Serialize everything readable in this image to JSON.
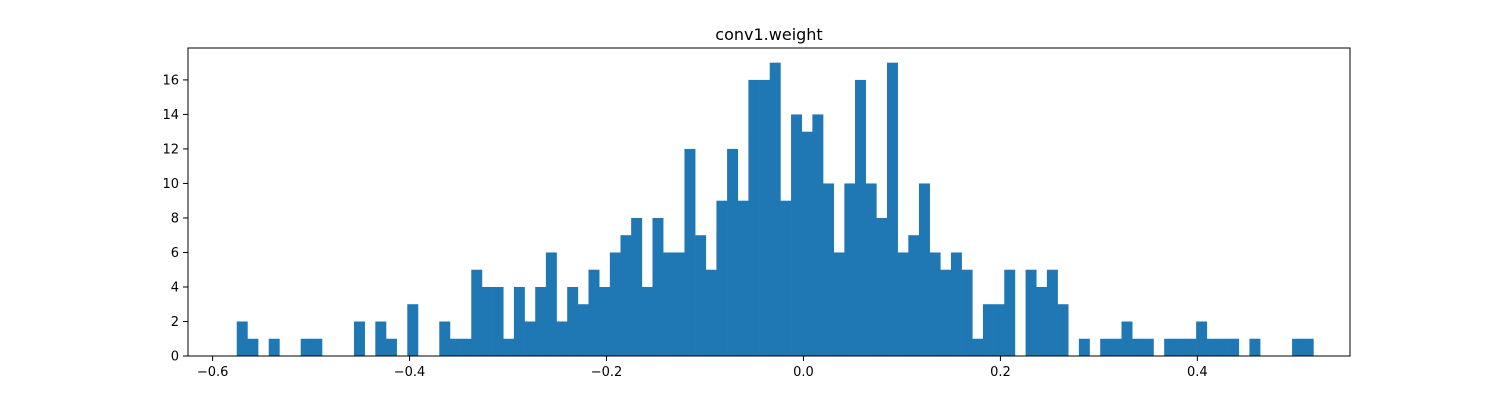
{
  "chart_data": {
    "type": "bar",
    "title": "conv1.weight",
    "xlabel": "",
    "ylabel": "",
    "bar_color": "#1f77b4",
    "grid": false,
    "legend": "none",
    "xlim": [
      -0.625,
      0.555
    ],
    "ylim": [
      0,
      17.85
    ],
    "x_ticks": [
      -0.6,
      -0.4,
      -0.2,
      0.0,
      0.2,
      0.4
    ],
    "x_tick_labels": [
      "−0.6",
      "−0.4",
      "−0.2",
      "0.0",
      "0.2",
      "0.4"
    ],
    "y_ticks": [
      0,
      2,
      4,
      6,
      8,
      10,
      12,
      14,
      16
    ],
    "y_tick_labels": [
      "0",
      "2",
      "4",
      "6",
      "8",
      "10",
      "12",
      "14",
      "16"
    ],
    "bin_start": -0.5755,
    "bin_width": 0.010825,
    "values": [
      2,
      1,
      0,
      1,
      0,
      0,
      1,
      1,
      0,
      0,
      0,
      2,
      0,
      2,
      1,
      0,
      3,
      0,
      0,
      2,
      1,
      1,
      5,
      4,
      4,
      1,
      4,
      2,
      4,
      6,
      2,
      4,
      3,
      5,
      4,
      6,
      7,
      8,
      4,
      8,
      6,
      6,
      12,
      7,
      5,
      9,
      12,
      9,
      16,
      16,
      17,
      9,
      14,
      13,
      14,
      10,
      6,
      10,
      16,
      10,
      8,
      17,
      6,
      7,
      10,
      6,
      5,
      6,
      5,
      1,
      3,
      3,
      5,
      0,
      5,
      4,
      5,
      3,
      0,
      1,
      0,
      1,
      1,
      2,
      1,
      1,
      0,
      1,
      1,
      1,
      2,
      1,
      1,
      1,
      0,
      1,
      0,
      0,
      0,
      1,
      1
    ]
  }
}
